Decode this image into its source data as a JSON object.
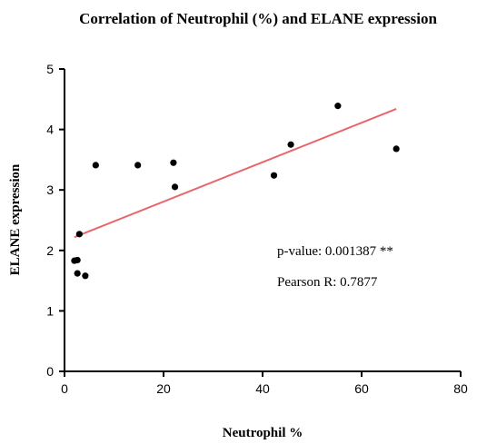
{
  "chart_data": {
    "type": "scatter",
    "title": "Correlation of Neutrophil (%) and ELANE expression",
    "xlabel": "Neutrophil %",
    "ylabel": "ELANE expression",
    "xlim": [
      0,
      80
    ],
    "ylim": [
      0,
      5
    ],
    "xticks": [
      0,
      20,
      40,
      60,
      80
    ],
    "yticks": [
      0,
      1,
      2,
      3,
      4,
      5
    ],
    "grid": false,
    "points": [
      {
        "x": 2.0,
        "y": 1.83
      },
      {
        "x": 2.6,
        "y": 1.84
      },
      {
        "x": 2.6,
        "y": 1.62
      },
      {
        "x": 3.0,
        "y": 2.27
      },
      {
        "x": 4.2,
        "y": 1.58
      },
      {
        "x": 6.3,
        "y": 3.41
      },
      {
        "x": 14.8,
        "y": 3.41
      },
      {
        "x": 22.0,
        "y": 3.45
      },
      {
        "x": 22.3,
        "y": 3.05
      },
      {
        "x": 42.3,
        "y": 3.24
      },
      {
        "x": 45.7,
        "y": 3.75
      },
      {
        "x": 55.2,
        "y": 4.39
      },
      {
        "x": 67.0,
        "y": 3.68
      }
    ],
    "regression_line": {
      "x": [
        2.0,
        67.0
      ],
      "y": [
        2.22,
        4.34
      ],
      "color": "#e8656a"
    },
    "point_color": "#000000",
    "annotations": [
      "p-value: 0.001387 **",
      "Pearson R: 0.7877"
    ]
  }
}
